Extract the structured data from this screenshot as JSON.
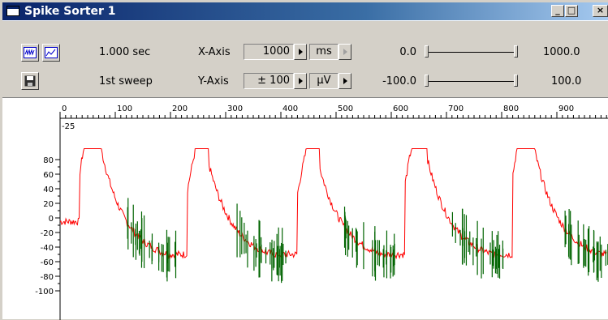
{
  "window": {
    "title": "Spike Sorter 1"
  },
  "titlebar": {
    "minimize": "_",
    "maximize": "□",
    "close": "×"
  },
  "toolbar": {
    "time_label": "1.000 sec",
    "sweep_label": "1st sweep",
    "x_axis": {
      "label": "X-Axis",
      "value": "1000",
      "unit": "ms",
      "min": "0.0",
      "max": "1000.0"
    },
    "y_axis": {
      "label": "Y-Axis",
      "value": "± 100",
      "unit": "µV",
      "min": "-100.0",
      "max": "100.0"
    }
  },
  "plot": {
    "x_ticks": [
      "0",
      "100",
      "200",
      "300",
      "400",
      "500",
      "600",
      "700",
      "800",
      "900"
    ],
    "y_ticks": [
      "80",
      "60",
      "40",
      "20",
      "0",
      "-20",
      "-40",
      "-60",
      "-80",
      "-100"
    ],
    "corner_label": "-25",
    "colors": {
      "trace": "#ff0000",
      "spike": "#006400"
    }
  }
}
